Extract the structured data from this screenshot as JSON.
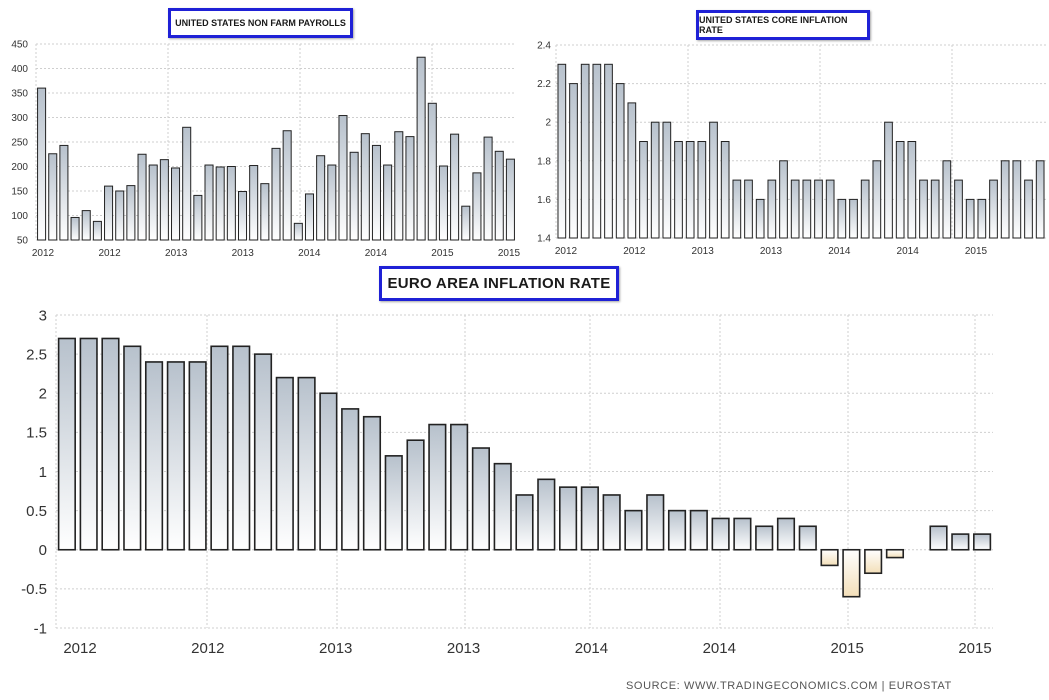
{
  "colors": {
    "bar_top": "#b7c1cc",
    "bar_bottom": "#ffffff",
    "neg_bar_top": "#ffffff",
    "neg_bar_bottom": "#f3dfb9",
    "bar_stroke": "#222222",
    "grid": "#cfcfcf",
    "title_border": "#1f21d6"
  },
  "source_text": "SOURCE:  WWW.TRADINGECONOMICS.COM  |  EUROSTAT",
  "chart_data": [
    {
      "type": "bar",
      "title": "UNITED STATES NON FARM PAYROLLS",
      "ylim": [
        50,
        450
      ],
      "yticks": [
        50,
        100,
        150,
        200,
        250,
        300,
        350,
        400,
        450
      ],
      "xtick_labels": [
        "2012",
        "2012",
        "2013",
        "2013",
        "2014",
        "2014",
        "2015",
        "2015"
      ],
      "grid": true,
      "values": [
        360,
        226,
        243,
        96,
        110,
        88,
        160,
        150,
        161,
        225,
        203,
        214,
        197,
        280,
        141,
        203,
        199,
        200,
        149,
        202,
        165,
        237,
        273,
        84,
        144,
        222,
        203,
        304,
        229,
        267,
        243,
        203,
        271,
        261,
        423,
        329,
        201,
        266,
        119,
        187,
        260,
        231,
        215
      ]
    },
    {
      "type": "bar",
      "title": "UNITED STATES CORE INFLATION RATE",
      "ylim": [
        1.4,
        2.4
      ],
      "yticks": [
        1.4,
        1.6,
        1.8,
        2,
        2.2,
        2.4
      ],
      "xtick_labels": [
        "2012",
        "2012",
        "2013",
        "2013",
        "2014",
        "2014",
        "2015"
      ],
      "grid": true,
      "values": [
        2.3,
        2.2,
        2.3,
        2.3,
        2.3,
        2.2,
        2.1,
        1.9,
        2.0,
        2.0,
        1.9,
        1.9,
        1.9,
        2.0,
        1.9,
        1.7,
        1.7,
        1.6,
        1.7,
        1.8,
        1.7,
        1.7,
        1.7,
        1.7,
        1.6,
        1.6,
        1.7,
        1.8,
        2.0,
        1.9,
        1.9,
        1.7,
        1.7,
        1.8,
        1.7,
        1.6,
        1.6,
        1.7,
        1.8,
        1.8,
        1.7,
        1.8
      ]
    },
    {
      "type": "bar",
      "title": "EURO AREA INFLATION RATE",
      "ylim": [
        -1,
        3
      ],
      "yticks": [
        -1,
        -0.5,
        0,
        0.5,
        1,
        1.5,
        2,
        2.5,
        3
      ],
      "xtick_labels": [
        "2012",
        "2012",
        "2013",
        "2013",
        "2014",
        "2014",
        "2015",
        "2015"
      ],
      "grid": true,
      "values": [
        2.7,
        2.7,
        2.7,
        2.6,
        2.4,
        2.4,
        2.4,
        2.6,
        2.6,
        2.5,
        2.2,
        2.2,
        2.0,
        1.8,
        1.7,
        1.2,
        1.4,
        1.6,
        1.6,
        1.3,
        1.1,
        0.7,
        0.9,
        0.8,
        0.8,
        0.7,
        0.5,
        0.7,
        0.5,
        0.5,
        0.4,
        0.4,
        0.3,
        0.4,
        0.3,
        -0.2,
        -0.6,
        -0.3,
        -0.1,
        null,
        0.3,
        0.2,
        0.2
      ]
    }
  ]
}
